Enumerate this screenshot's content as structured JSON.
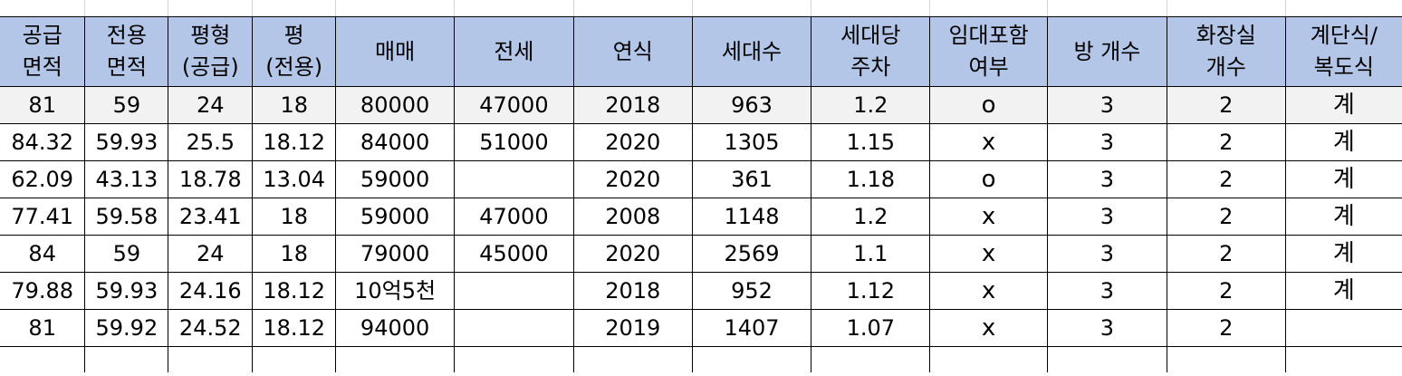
{
  "sheet": {
    "headers": [
      [
        "공급",
        "면적"
      ],
      [
        "전용",
        "면적"
      ],
      [
        "평형",
        "(공급)"
      ],
      [
        "평",
        "(전용)"
      ],
      [
        "매매",
        ""
      ],
      [
        "전세",
        ""
      ],
      [
        "연식",
        ""
      ],
      [
        "세대수",
        ""
      ],
      [
        "세대당",
        "주차"
      ],
      [
        "임대포함",
        "여부"
      ],
      [
        "방 개수",
        ""
      ],
      [
        "화장실",
        "개수"
      ],
      [
        "계단식/",
        "복도식"
      ]
    ],
    "rows": [
      [
        "81",
        "59",
        "24",
        "18",
        "80000",
        "47000",
        "2018",
        "963",
        "1.2",
        "o",
        "3",
        "2",
        "계"
      ],
      [
        "84.32",
        "59.93",
        "25.5",
        "18.12",
        "84000",
        "51000",
        "2020",
        "1305",
        "1.15",
        "x",
        "3",
        "2",
        "계"
      ],
      [
        "62.09",
        "43.13",
        "18.78",
        "13.04",
        "59000",
        "",
        "2020",
        "361",
        "1.18",
        "o",
        "3",
        "2",
        "계"
      ],
      [
        "77.41",
        "59.58",
        "23.41",
        "18",
        "59000",
        "47000",
        "2008",
        "1148",
        "1.2",
        "x",
        "3",
        "2",
        "계"
      ],
      [
        "84",
        "59",
        "24",
        "18",
        "79000",
        "45000",
        "2020",
        "2569",
        "1.1",
        "x",
        "3",
        "2",
        "계"
      ],
      [
        "79.88",
        "59.93",
        "24.16",
        "18.12",
        "10억5천",
        "",
        "2018",
        "952",
        "1.12",
        "x",
        "3",
        "2",
        "계"
      ],
      [
        "81",
        "59.92",
        "24.52",
        "18.12",
        "94000",
        "",
        "2019",
        "1407",
        "1.07",
        "x",
        "3",
        "2",
        ""
      ]
    ],
    "colors": {
      "header_fill": "#b4c6e7",
      "grid_line": "#000000",
      "selected_row_fill": "#f2f2f2"
    }
  }
}
